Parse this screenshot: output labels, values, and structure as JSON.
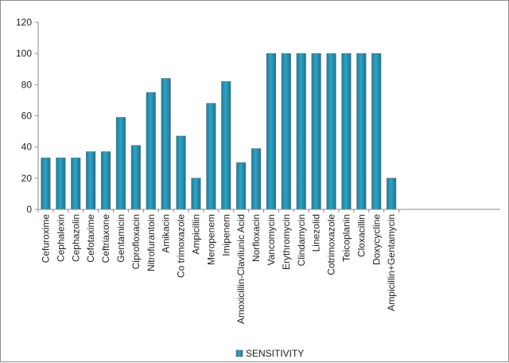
{
  "chart_data": {
    "type": "bar",
    "title": "",
    "xlabel": "",
    "ylabel": "",
    "ylim": [
      0,
      120
    ],
    "yticks": [
      0,
      20,
      40,
      60,
      80,
      100,
      120
    ],
    "grid": false,
    "legend_position": "bottom",
    "bar_color": "#2fa3c4",
    "categories": [
      "Cefuroxime",
      "Cephalexin",
      "Cephazolin",
      "Cefotaxime",
      "Ceftriaxone",
      "Gentamicin",
      "Ciprofloxacin",
      "Nitrofurantoin",
      "Amikacin",
      "Co trimoxazole",
      "Ampicillin",
      "Meropenem",
      "Imipenem",
      "Amoxicillin-Clavilunic Acid",
      "Norfloxacin",
      "Vancomycin",
      "Erythromycin",
      "Clindamycin",
      "Linezolid",
      "Cotrimoxazole",
      "Teicoplanin",
      "Cloxacillin",
      "Doxycycline",
      "Ampicillin+Gentamycin"
    ],
    "series": [
      {
        "name": "SENSITIVITY",
        "values": [
          33,
          33,
          33,
          37,
          37,
          59,
          41,
          75,
          84,
          47,
          20,
          68,
          82,
          30,
          39,
          100,
          100,
          100,
          100,
          100,
          100,
          100,
          100,
          20
        ]
      }
    ]
  }
}
